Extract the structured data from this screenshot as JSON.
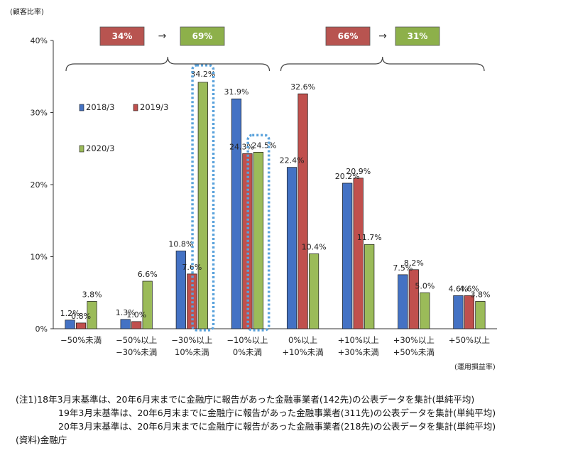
{
  "chart_data": {
    "type": "bar",
    "ylabel": "(顧客比率)",
    "xlabel": "(運用損益率)",
    "ylim": [
      0,
      40
    ],
    "yticks": [
      "0%",
      "10%",
      "20%",
      "30%",
      "40%"
    ],
    "categories": [
      [
        "−50%未満"
      ],
      [
        "−50%以上",
        "−30%未満"
      ],
      [
        "−30%以上",
        "10%未満"
      ],
      [
        "−10%以上",
        "0%未満"
      ],
      [
        "0%以上",
        "+10%未満"
      ],
      [
        "+10%以上",
        "+30%未満"
      ],
      [
        "+30%以上",
        "+50%未満"
      ],
      [
        "+50%以上"
      ]
    ],
    "series": [
      {
        "name": "2018/3",
        "color": "#4472C4",
        "values": [
          1.2,
          1.3,
          10.8,
          31.9,
          22.4,
          20.2,
          7.5,
          4.6
        ],
        "labels": [
          "1.2%",
          "1.3%",
          "10.8%",
          "31.9%",
          "22.4%",
          "20.2%",
          "7.5%",
          "4.6%"
        ]
      },
      {
        "name": "2019/3",
        "color": "#C0504D",
        "values": [
          0.8,
          1.0,
          7.6,
          24.3,
          32.6,
          20.9,
          8.2,
          4.6
        ],
        "labels": [
          "0.8%",
          "1.0%",
          "7.6%",
          "24.3%",
          "32.6%",
          "20.9%",
          "8.2%",
          "4.6%"
        ]
      },
      {
        "name": "2020/3",
        "color": "#9BBB59",
        "values": [
          3.8,
          6.6,
          34.2,
          24.5,
          10.4,
          11.7,
          5.0,
          3.8
        ],
        "labels": [
          "3.8%",
          "6.6%",
          "34.2%",
          "24.5%",
          "10.4%",
          "11.7%",
          "5.0%",
          "3.8%"
        ]
      }
    ],
    "summary_boxes": [
      {
        "from": "34%",
        "to": "69%",
        "from_color": "#B85450",
        "to_color": "#8DB04A"
      },
      {
        "from": "66%",
        "to": "31%",
        "from_color": "#B85450",
        "to_color": "#8DB04A"
      }
    ],
    "arrow": "→",
    "legend_position": "upper-left-inside"
  },
  "notes": {
    "note1_prefix": "(注1)",
    "note1": "18年3月末基準は、20年6月末までに金融庁に報告があった金融事業者(142先)の公表データを集計(単純平均)",
    "note2": "19年3月末基準は、20年6月末までに金融庁に報告があった金融事業者(311先)の公表データを集計(単純平均)",
    "note3": "20年3月末基準は、20年6月末までに金融庁に報告があった金融事業者(218先)の公表データを集計(単純平均)",
    "source": "(資料)金融庁"
  }
}
